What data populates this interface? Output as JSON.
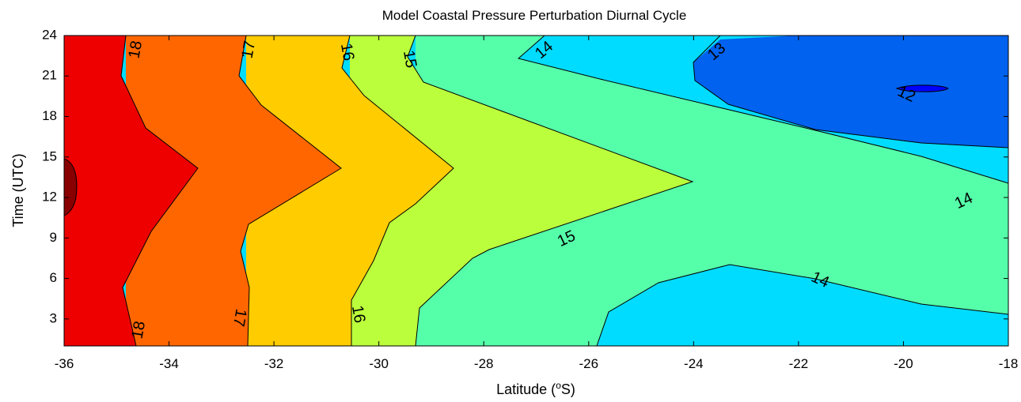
{
  "chart_data": {
    "type": "contour",
    "title": "Model Coastal Pressure Perturbation Diurnal Cycle",
    "xlabel": "Latitude (",
    "xlabel_sup": "o",
    "xlabel_suffix": "S)",
    "ylabel": "Time (UTC)",
    "xlim": [
      -36,
      -18
    ],
    "ylim": [
      1,
      24
    ],
    "x_ticks": [
      -36,
      -34,
      -32,
      -30,
      -28,
      -26,
      -24,
      -22,
      -20,
      -18
    ],
    "y_ticks": [
      3,
      6,
      9,
      12,
      15,
      18,
      21,
      24
    ],
    "colorscale": [
      {
        "level": "<12",
        "color": "#0000ff"
      },
      {
        "level": "12-13",
        "color": "#0062ee"
      },
      {
        "level": "13-14",
        "color": "#00dcff"
      },
      {
        "level": "14-15",
        "color": "#55ffaa"
      },
      {
        "level": "15-16",
        "color": "#bbff3c"
      },
      {
        "level": "16-17",
        "color": "#ffcc00"
      },
      {
        "level": "17-18",
        "color": "#ff6600"
      },
      {
        "level": "18-19",
        "color": "#ee0000"
      },
      {
        "level": ">19",
        "color": "#880000"
      }
    ],
    "contour_lines": [
      {
        "level": 18,
        "points": [
          [
            -34.8,
            24
          ],
          [
            -34.9,
            21.5
          ],
          [
            -34.5,
            18.5
          ],
          [
            -33.4,
            14
          ],
          [
            -34.5,
            9
          ],
          [
            -34.9,
            5.5
          ],
          [
            -34.7,
            1
          ]
        ]
      },
      {
        "level": 17,
        "points": [
          [
            -32.0,
            24
          ],
          [
            -32.1,
            21.5
          ],
          [
            -31.8,
            18.5
          ],
          [
            -30.7,
            14
          ],
          [
            -31.9,
            9
          ],
          [
            -32.3,
            5.5
          ],
          [
            -32.4,
            1
          ]
        ]
      },
      {
        "level": 16,
        "points": [
          [
            -29.0,
            24
          ],
          [
            -29.1,
            21
          ],
          [
            -28.6,
            18.3
          ],
          [
            -28.5,
            14
          ],
          [
            -28.9,
            10.5
          ],
          [
            -29.5,
            6
          ],
          [
            -29.9,
            1
          ]
        ]
      },
      {
        "level": 15,
        "points": [
          [
            -28.0,
            24
          ],
          [
            -28.1,
            21.5
          ],
          [
            -27.8,
            19
          ],
          [
            -24,
            13
          ],
          [
            -27.5,
            8.2
          ],
          [
            -28.7,
            6
          ],
          [
            -29.2,
            1
          ]
        ]
      },
      {
        "level": 14,
        "points": [
          [
            -26.5,
            24
          ],
          [
            -27.0,
            22.2
          ],
          [
            -25.5,
            20
          ],
          [
            -22.0,
            16.5
          ],
          [
            -20.0,
            14.3
          ],
          [
            -18.0,
            12
          ]
        ]
      },
      {
        "level": 14,
        "points": [
          [
            -25.8,
            1
          ],
          [
            -25.2,
            2.2
          ],
          [
            -23.4,
            4.7
          ],
          [
            -22.0,
            7
          ],
          [
            -21.0,
            6.8
          ],
          [
            -19.5,
            4
          ],
          [
            -18.0,
            2.6
          ]
        ]
      },
      {
        "level": 13,
        "points": [
          [
            -22.7,
            24
          ],
          [
            -23.4,
            22
          ],
          [
            -23.2,
            19.5
          ],
          [
            -21.5,
            17.5
          ],
          [
            -19.5,
            16.3
          ],
          [
            -18.0,
            15.8
          ]
        ]
      },
      {
        "level": 12,
        "points": [
          [
            -19.8,
            20.4
          ],
          [
            -19.4,
            20.4
          ],
          [
            -19.2,
            20.1
          ],
          [
            -19.7,
            19.8
          ],
          [
            -19.9,
            20.1
          ]
        ]
      },
      {
        "level": 19,
        "points": [
          [
            -36,
            14.2
          ],
          [
            -35.8,
            13.5
          ],
          [
            -35.8,
            11.5
          ],
          [
            -36,
            10.6
          ]
        ]
      }
    ],
    "contour_labels": [
      {
        "text": "18",
        "x": -34.5,
        "y": 22.4
      },
      {
        "text": "17",
        "x": -31.7,
        "y": 22.4
      },
      {
        "text": "16",
        "x": -30.5,
        "y": 22.4
      },
      {
        "text": "15",
        "x": -29.2,
        "y": 21.6
      },
      {
        "text": "14",
        "x": -26.8,
        "y": 22.6
      },
      {
        "text": "13",
        "x": -23.2,
        "y": 22.4
      },
      {
        "text": "12",
        "x": -19.6,
        "y": 19.6
      },
      {
        "text": "15",
        "x": -27.1,
        "y": 8.6
      },
      {
        "text": "14",
        "x": -18.9,
        "y": 11.8
      },
      {
        "text": "14",
        "x": -21.5,
        "y": 5.5
      },
      {
        "text": "18",
        "x": -34.5,
        "y": 2.2
      },
      {
        "text": "17",
        "x": -31.7,
        "y": 4.1
      },
      {
        "text": "16",
        "x": -30.3,
        "y": 3.2
      }
    ]
  }
}
